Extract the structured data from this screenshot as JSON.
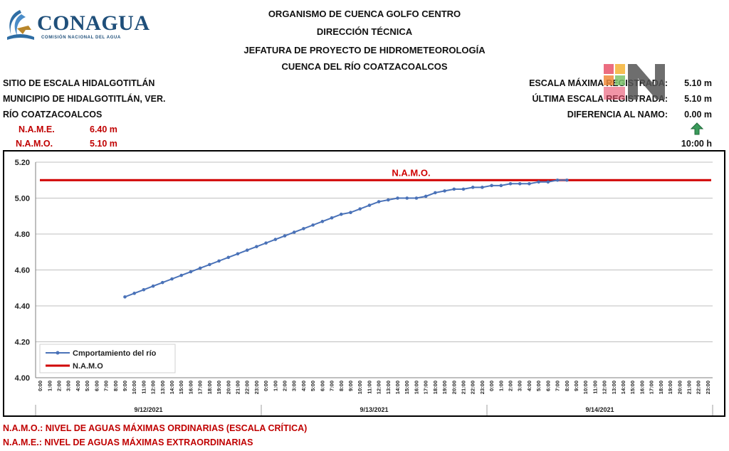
{
  "header": {
    "line1": "ORGANISMO DE CUENCA GOLFO CENTRO",
    "line2": "DIRECCIÓN TÉCNICA",
    "line3": "JEFATURA DE PROYECTO DE HIDROMETEOROLOGÍA",
    "line4": "CUENCA DEL RÍO COATZACOALCOS"
  },
  "logo": {
    "name": "CONAGUA",
    "subtitle": "COMISIÓN NACIONAL DEL AGUA"
  },
  "site": {
    "line1": "SITIO DE ESCALA HIDALGOTITLÁN",
    "line2": "MUNICIPIO DE HIDALGOTITLÁN, VER.",
    "line3": "RÍO COATZACOALCOS",
    "name_label": "N.A.M.E.",
    "name_value": "6.40 m",
    "namo_label": "N.A.M.O.",
    "namo_value": "5.10 m"
  },
  "stats": {
    "max_label": "ESCALA MÁXIMA REGISTRADA:",
    "max_value": "5.10 m",
    "last_label": "ÚLTIMA ESCALA REGISTRADA:",
    "last_value": "5.10 m",
    "diff_label": "DIFERENCIA AL NAMO:",
    "diff_value": "0.00 m",
    "time_value": "10:00 h",
    "trend_icon": "up-arrow-icon"
  },
  "footer": {
    "namo_def": "N.A.M.O.: NIVEL DE AGUAS MÁXIMAS ORDINARIAS (ESCALA CRÍTICA)",
    "name_def": "N.A.M.E.: NIVEL DE AGUAS MÁXIMAS EXTRAORDINARIAS"
  },
  "colors": {
    "series": "#4a72b8",
    "namo": "#d00000",
    "label_red": "#c00000"
  },
  "chart_data": {
    "type": "line",
    "ylim": [
      4.0,
      5.2
    ],
    "yticks": [
      "4.00",
      "4.20",
      "4.40",
      "4.60",
      "4.80",
      "5.00",
      "5.20"
    ],
    "x_hour_labels": [
      "0:00",
      "1:00",
      "2:00",
      "3:00",
      "4:00",
      "5:00",
      "6:00",
      "7:00",
      "8:00",
      "9:00",
      "10:00",
      "11:00",
      "12:00",
      "13:00",
      "14:00",
      "15:00",
      "16:00",
      "17:00",
      "18:00",
      "19:00",
      "20:00",
      "21:00",
      "22:00",
      "23:00"
    ],
    "days": [
      "9/12/2021",
      "9/13/2021",
      "9/14/2021"
    ],
    "namo_label": "N.A.M.O.",
    "namo_value": 5.1,
    "legend_position": "bottom-left",
    "grid": true,
    "series": [
      {
        "name": "Cmportamiento del río",
        "start_index": 9,
        "values": [
          4.45,
          4.47,
          4.49,
          4.51,
          4.53,
          4.55,
          4.57,
          4.59,
          4.61,
          4.63,
          4.65,
          4.67,
          4.69,
          4.71,
          4.73,
          4.75,
          4.77,
          4.79,
          4.81,
          4.83,
          4.85,
          4.87,
          4.89,
          4.91,
          4.92,
          4.94,
          4.96,
          4.98,
          4.99,
          5.0,
          5.0,
          5.0,
          5.01,
          5.03,
          5.04,
          5.05,
          5.05,
          5.06,
          5.06,
          5.07,
          5.07,
          5.08,
          5.08,
          5.08,
          5.09,
          5.09,
          5.1,
          5.1
        ]
      },
      {
        "name": "N.A.M.O"
      }
    ]
  }
}
